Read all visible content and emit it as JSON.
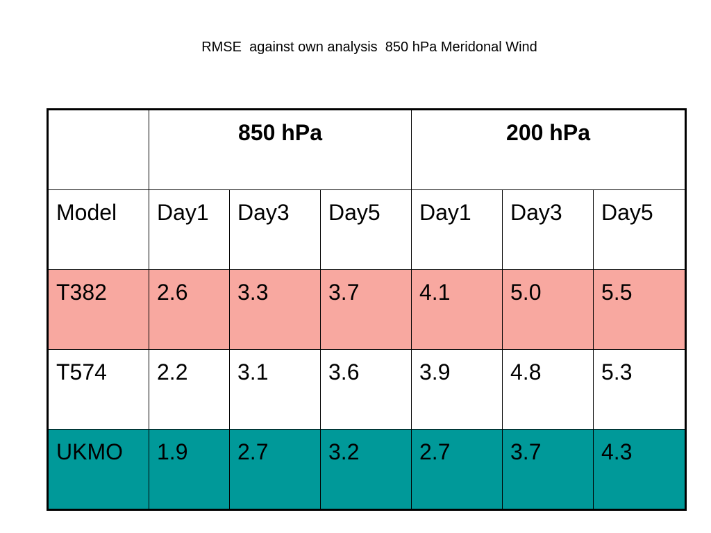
{
  "title": "RMSE  against own analysis  850 hPa Meridonal Wind",
  "table": {
    "group_headers": [
      "",
      "850 hPa",
      "200 hPa"
    ],
    "column_headers": [
      "Model",
      "Day1",
      "Day3",
      "Day5",
      "Day1",
      "Day3",
      "Day5"
    ],
    "rows": [
      {
        "model": "T382",
        "values": [
          "2.6",
          "3.3",
          "3.7",
          "4.1",
          "5.0",
          "5.5"
        ],
        "background": "#f8a8a0"
      },
      {
        "model": "T574",
        "values": [
          "2.2",
          "3.1",
          "3.6",
          "3.9",
          "4.8",
          "5.3"
        ],
        "background": "#ffffff"
      },
      {
        "model": "UKMO",
        "values": [
          "1.9",
          "2.7",
          "3.2",
          "2.7",
          "3.7",
          "4.3"
        ],
        "background": "#009999"
      }
    ]
  }
}
